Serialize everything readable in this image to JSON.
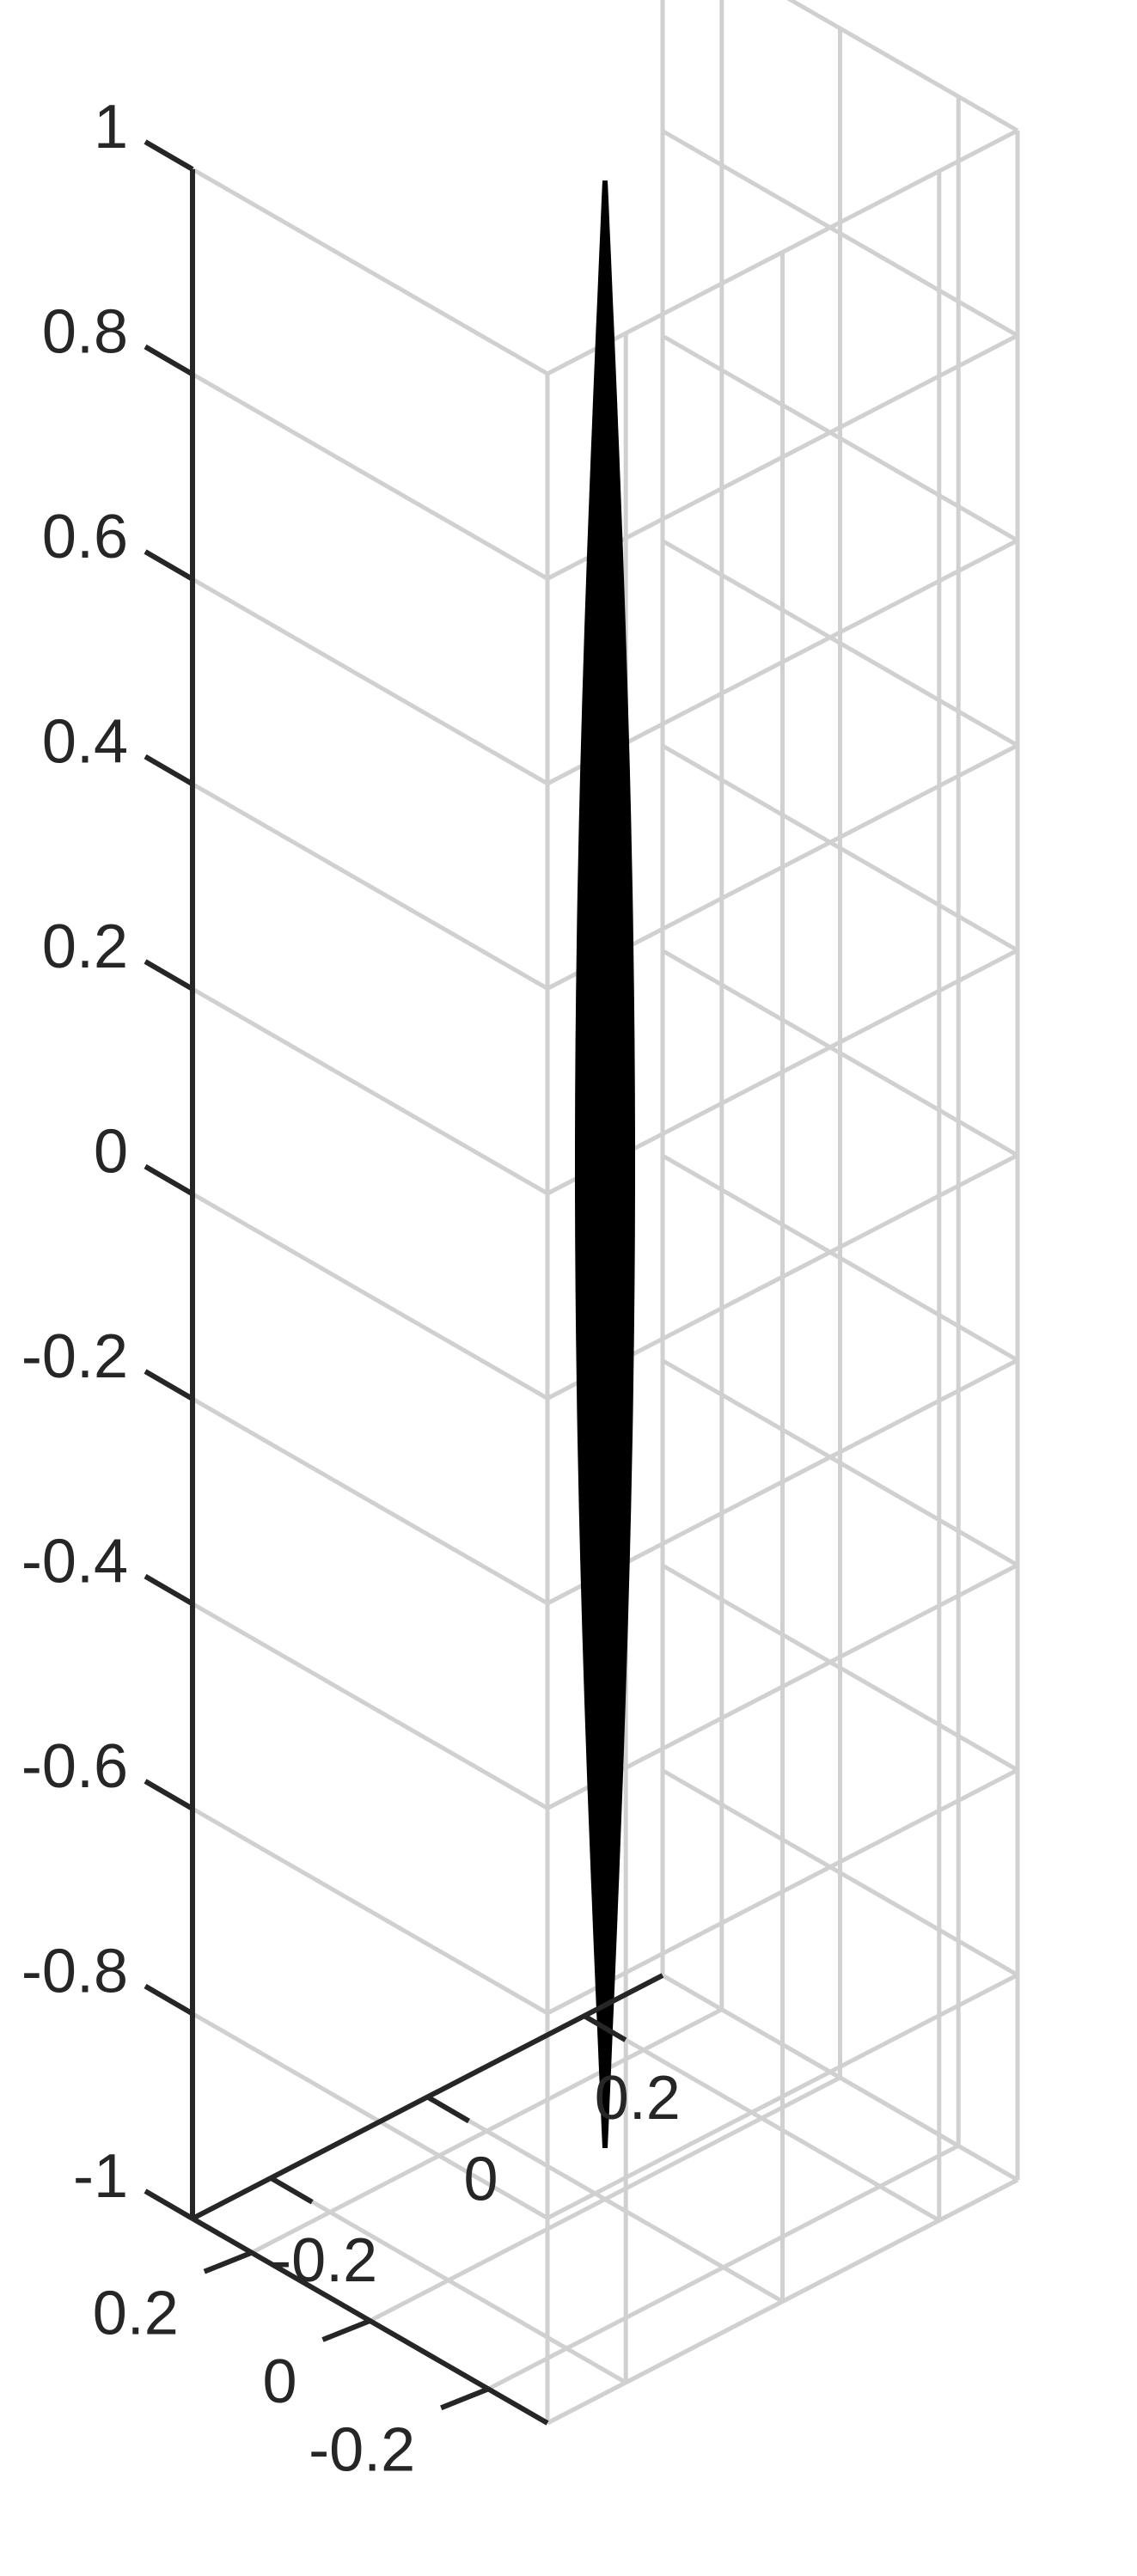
{
  "chart_data": {
    "type": "surface3d",
    "title": "",
    "xlabel": "",
    "ylabel": "",
    "zlabel": "",
    "grid": true,
    "box": true,
    "xlim": [
      -0.3,
      0.3
    ],
    "ylim": [
      -0.3,
      0.3
    ],
    "zlim": [
      -1,
      1
    ],
    "x_ticks": [
      -0.2,
      0,
      0.2
    ],
    "x_tick_labels": [
      "-0.2",
      "0",
      "0.2"
    ],
    "y_ticks": [
      -0.2,
      0,
      0.2
    ],
    "y_tick_labels": [
      "-0.2",
      "0",
      "0.2"
    ],
    "z_ticks": [
      -1,
      -0.8,
      -0.6,
      -0.4,
      -0.2,
      0,
      0.2,
      0.4,
      0.6,
      0.8,
      1
    ],
    "z_tick_labels": [
      "-1",
      "-0.8",
      "-0.6",
      "-0.4",
      "-0.2",
      "0",
      "0.2",
      "0.4",
      "0.6",
      "0.8",
      "1"
    ],
    "surface": {
      "color": "#000000",
      "z_range": [
        -0.95,
        0.97
      ],
      "max_radius": 0.02
    }
  }
}
